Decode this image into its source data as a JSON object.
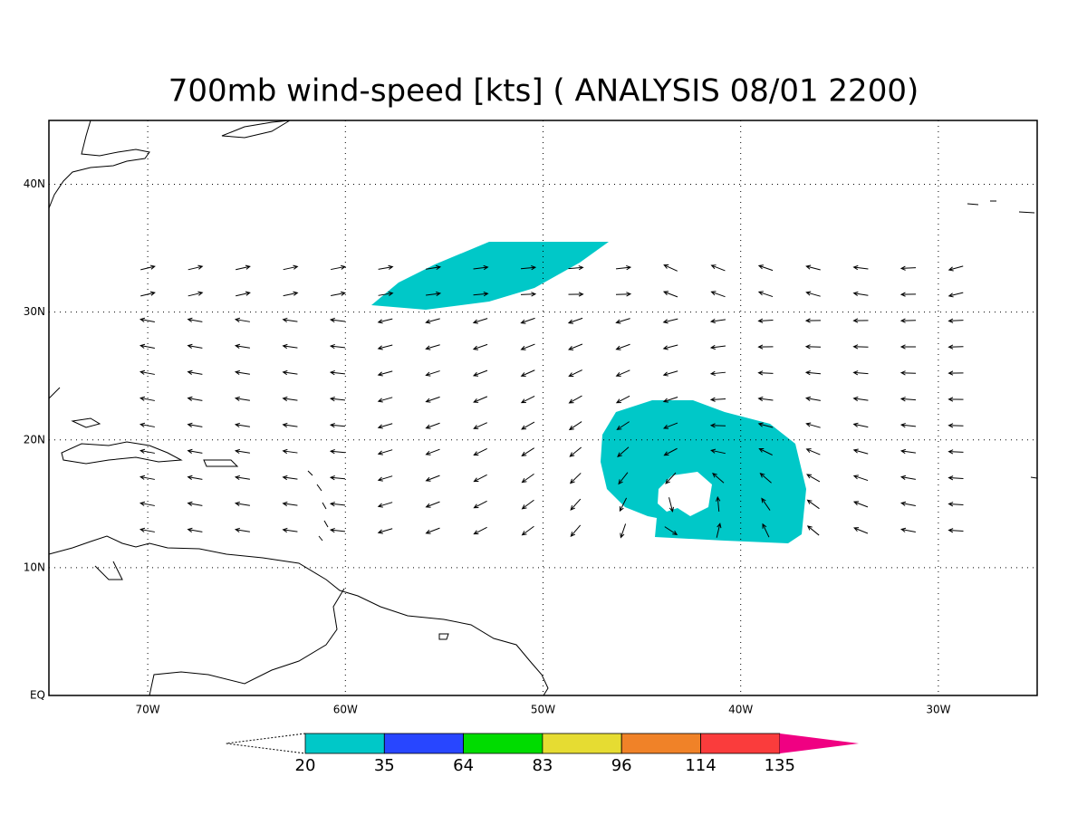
{
  "title": "700mb wind-speed [kts] ( ANALYSIS 08/01 2200)",
  "lon_lim": [
    -75,
    -25
  ],
  "lat_lim": [
    0,
    45
  ],
  "lon_ticks": [
    {
      "value": -70,
      "label": "70W"
    },
    {
      "value": -60,
      "label": "60W"
    },
    {
      "value": -50,
      "label": "50W"
    },
    {
      "value": -40,
      "label": "40W"
    },
    {
      "value": -30,
      "label": "30W"
    }
  ],
  "lat_ticks": [
    {
      "value": 0,
      "label": "EQ"
    },
    {
      "value": 10,
      "label": "10N"
    },
    {
      "value": 20,
      "label": "20N"
    },
    {
      "value": 30,
      "label": "30N"
    },
    {
      "value": 40,
      "label": "40N"
    }
  ],
  "colorbar": {
    "levels": [
      20,
      35,
      64,
      83,
      96,
      114,
      135
    ],
    "colors": [
      "#00c8c8",
      "#2846ff",
      "#00dc00",
      "#e6dc32",
      "#f08228",
      "#fa3c3c",
      "#f00082"
    ]
  }
}
